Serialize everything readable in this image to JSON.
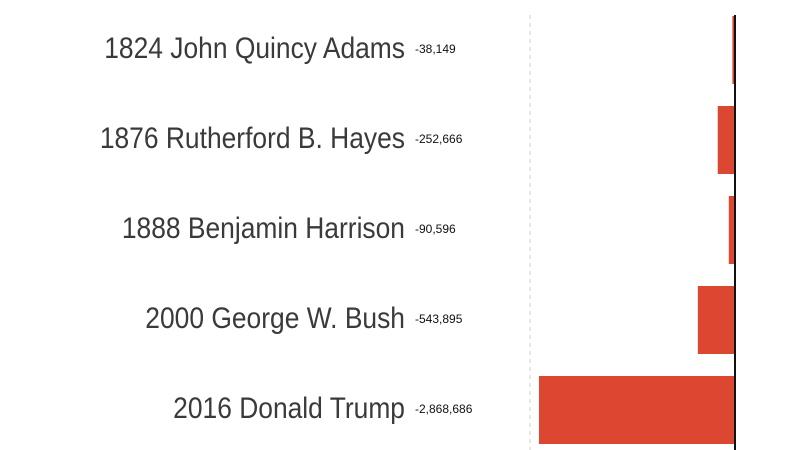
{
  "chart_data": {
    "type": "hbar",
    "categories": [
      "1824 John Quincy Adams",
      "1876 Rutherford B. Hayes",
      "1888 Benjamin Harrison",
      "2000 George W. Bush",
      "2016 Donald Trump"
    ],
    "values": [
      -38149,
      -252666,
      -90596,
      -543895,
      -2868686
    ],
    "value_labels": [
      "-38,149",
      "-252,666",
      "-90,596",
      "-543,895",
      "-2,868,686"
    ],
    "color": "#dc4731",
    "xlim": [
      -3000000,
      0
    ]
  }
}
